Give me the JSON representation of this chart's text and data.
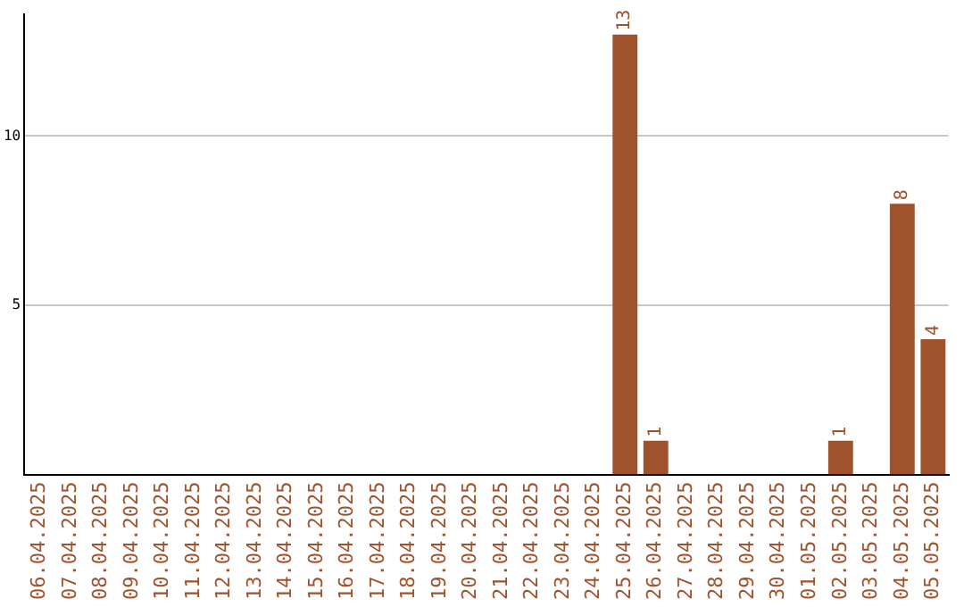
{
  "chart_data": {
    "type": "bar",
    "categories": [
      "06.04.2025",
      "07.04.2025",
      "08.04.2025",
      "09.04.2025",
      "10.04.2025",
      "11.04.2025",
      "12.04.2025",
      "13.04.2025",
      "14.04.2025",
      "15.04.2025",
      "16.04.2025",
      "17.04.2025",
      "18.04.2025",
      "19.04.2025",
      "20.04.2025",
      "21.04.2025",
      "22.04.2025",
      "23.04.2025",
      "24.04.2025",
      "25.04.2025",
      "26.04.2025",
      "27.04.2025",
      "28.04.2025",
      "29.04.2025",
      "30.04.2025",
      "01.05.2025",
      "02.05.2025",
      "03.05.2025",
      "04.05.2025",
      "05.05.2025"
    ],
    "values": [
      0,
      0,
      0,
      0,
      0,
      0,
      0,
      0,
      0,
      0,
      0,
      0,
      0,
      0,
      0,
      0,
      0,
      0,
      0,
      13,
      1,
      0,
      0,
      0,
      0,
      0,
      1,
      0,
      8,
      4
    ],
    "value_labels": [
      null,
      null,
      null,
      null,
      null,
      null,
      null,
      null,
      null,
      null,
      null,
      null,
      null,
      null,
      null,
      null,
      null,
      null,
      null,
      "13",
      "1",
      null,
      null,
      null,
      null,
      null,
      "1",
      null,
      "8",
      "4"
    ],
    "color": "#a0522d",
    "ylim": [
      0,
      13.6
    ],
    "yticks": [
      5,
      10
    ],
    "grid": "y",
    "legend": false
  }
}
